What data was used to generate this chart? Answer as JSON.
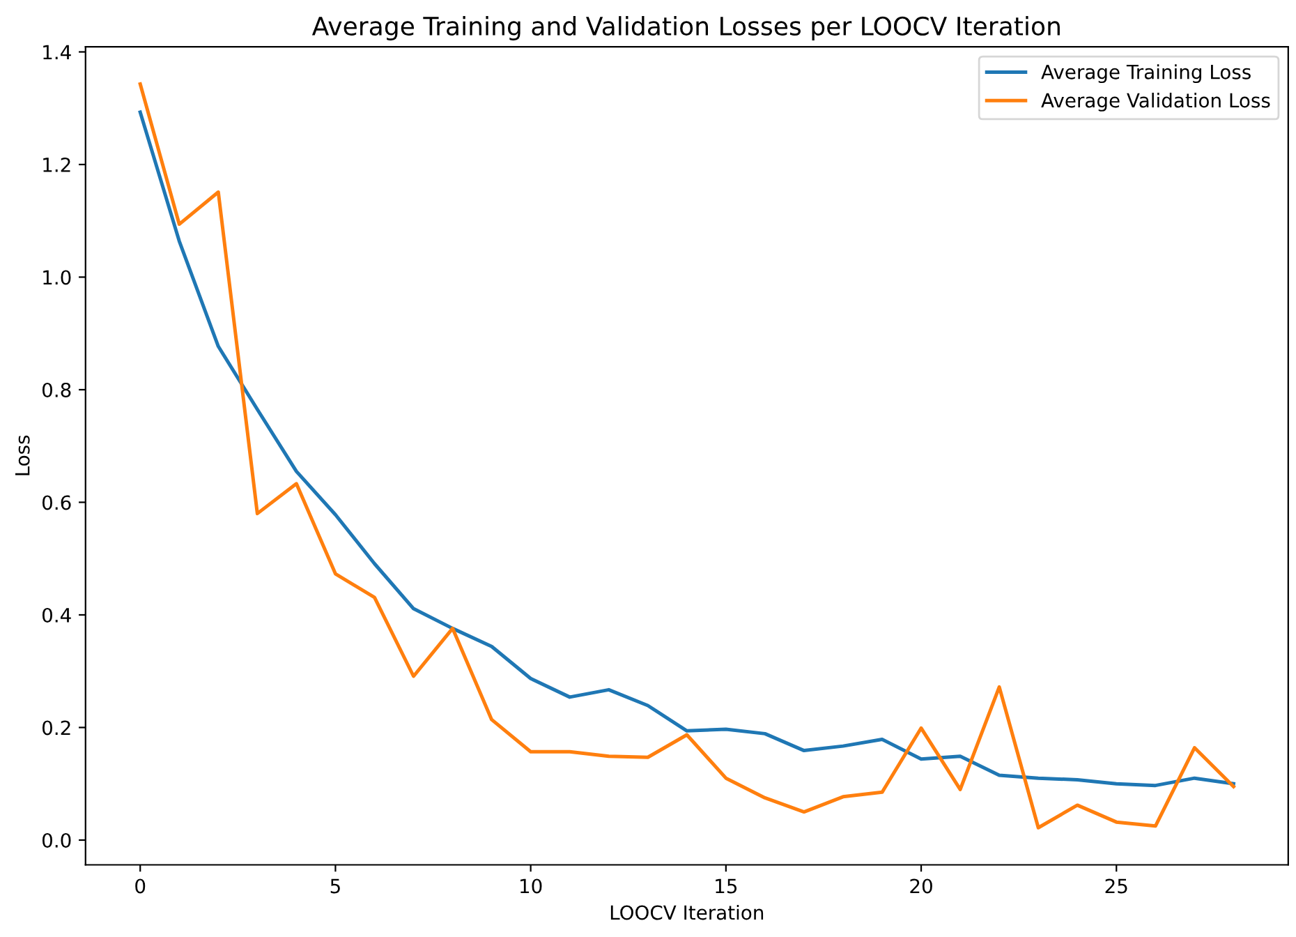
{
  "chart_data": {
    "type": "line",
    "title": "Average Training and Validation Losses per LOOCV Iteration",
    "xlabel": "LOOCV Iteration",
    "ylabel": "Loss",
    "x": [
      0,
      1,
      2,
      3,
      4,
      5,
      6,
      7,
      8,
      9,
      10,
      11,
      12,
      13,
      14,
      15,
      16,
      17,
      18,
      19,
      20,
      21,
      22,
      23,
      24,
      25,
      26,
      27,
      28
    ],
    "series": [
      {
        "name": "Average Training Loss",
        "color": "#1f77b4",
        "values": [
          1.293,
          1.064,
          0.877,
          0.765,
          0.655,
          0.578,
          0.491,
          0.411,
          0.376,
          0.344,
          0.287,
          0.254,
          0.267,
          0.239,
          0.194,
          0.197,
          0.189,
          0.159,
          0.167,
          0.179,
          0.144,
          0.149,
          0.115,
          0.11,
          0.107,
          0.1,
          0.097,
          0.11,
          0.1
        ]
      },
      {
        "name": "Average Validation Loss",
        "color": "#ff7f0e",
        "values": [
          1.343,
          1.094,
          1.151,
          0.58,
          0.633,
          0.473,
          0.431,
          0.291,
          0.376,
          0.214,
          0.157,
          0.157,
          0.149,
          0.147,
          0.187,
          0.11,
          0.075,
          0.05,
          0.077,
          0.085,
          0.199,
          0.09,
          0.272,
          0.022,
          0.062,
          0.032,
          0.025,
          0.164,
          0.095
        ]
      }
    ],
    "xlim": [
      -1.4,
      29.4
    ],
    "xticks": [
      0,
      5,
      10,
      15,
      20,
      25
    ],
    "ylim": [
      -0.044,
      1.409
    ],
    "yticks": [
      {
        "value": 0,
        "label": "0.0"
      },
      {
        "value": 0.2,
        "label": "0.2"
      },
      {
        "value": 0.4,
        "label": "0.4"
      },
      {
        "value": 0.6,
        "label": "0.6"
      },
      {
        "value": 0.8,
        "label": "0.8"
      },
      {
        "value": 1.0,
        "label": "1.0"
      },
      {
        "value": 1.2,
        "label": "1.2"
      },
      {
        "value": 1.4,
        "label": "1.4"
      }
    ],
    "legend": "top right"
  }
}
